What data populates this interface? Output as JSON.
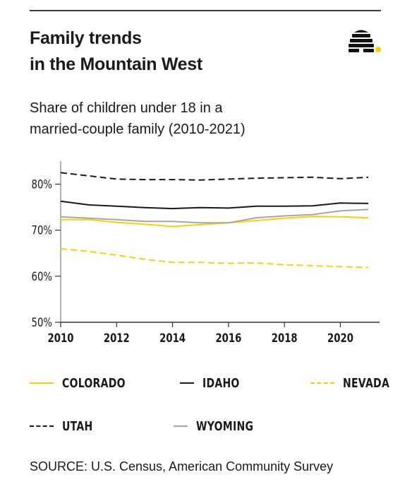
{
  "header": {
    "title_line1": "Family trends",
    "title_line2": "in the Mountain West",
    "subtitle_line1": "Share of children under 18 in a",
    "subtitle_line2": "married-couple family (2010-2021)"
  },
  "logo": {
    "icon": "beehive-icon",
    "color": "#111111",
    "dot_color": "#f2d10f"
  },
  "chart_data": {
    "type": "line",
    "title": "Share of children under 18 in a married-couple family (2010-2021)",
    "xlabel": "",
    "ylabel": "",
    "x": [
      2010,
      2011,
      2012,
      2013,
      2014,
      2015,
      2016,
      2017,
      2018,
      2019,
      2020,
      2021
    ],
    "xlim": [
      2010,
      2021.4
    ],
    "ylim": [
      50,
      85
    ],
    "xticks": [
      2010,
      2012,
      2014,
      2016,
      2018,
      2020
    ],
    "xtick_labels": [
      "2010",
      "2012",
      "2014",
      "2016",
      "2018",
      "2020"
    ],
    "yticks": [
      50,
      60,
      70,
      80
    ],
    "ytick_labels": [
      "50%",
      "60%",
      "70%",
      "80%"
    ],
    "grid": false,
    "legend_position": "bottom",
    "series": [
      {
        "name": "COLORADO",
        "color": "#f2d10f",
        "dash": "solid",
        "values": [
          72.3,
          72.3,
          71.7,
          71.3,
          70.8,
          71.2,
          71.6,
          72.1,
          72.6,
          73.0,
          72.9,
          72.7
        ]
      },
      {
        "name": "IDAHO",
        "color": "#1a1a1a",
        "dash": "solid",
        "values": [
          76.3,
          75.5,
          75.2,
          74.9,
          74.7,
          74.9,
          74.8,
          75.2,
          75.2,
          75.3,
          75.9,
          75.8
        ]
      },
      {
        "name": "NEVADA",
        "color": "#f2d10f",
        "dash": "dashed",
        "values": [
          66.0,
          65.4,
          64.6,
          63.7,
          63.0,
          63.0,
          62.8,
          62.9,
          62.5,
          62.3,
          62.1,
          61.9
        ]
      },
      {
        "name": "UTAH",
        "color": "#1a1a1a",
        "dash": "dashed",
        "values": [
          82.5,
          81.8,
          81.1,
          81.0,
          81.0,
          80.9,
          81.1,
          81.3,
          81.4,
          81.5,
          81.2,
          81.5
        ]
      },
      {
        "name": "WYOMING",
        "color": "#a6a6a6",
        "dash": "solid",
        "values": [
          72.9,
          72.6,
          72.3,
          71.9,
          71.9,
          71.6,
          71.6,
          72.7,
          73.1,
          73.4,
          74.2,
          74.5
        ]
      }
    ]
  },
  "source": "SOURCE: U.S. Census, American Community Survey"
}
